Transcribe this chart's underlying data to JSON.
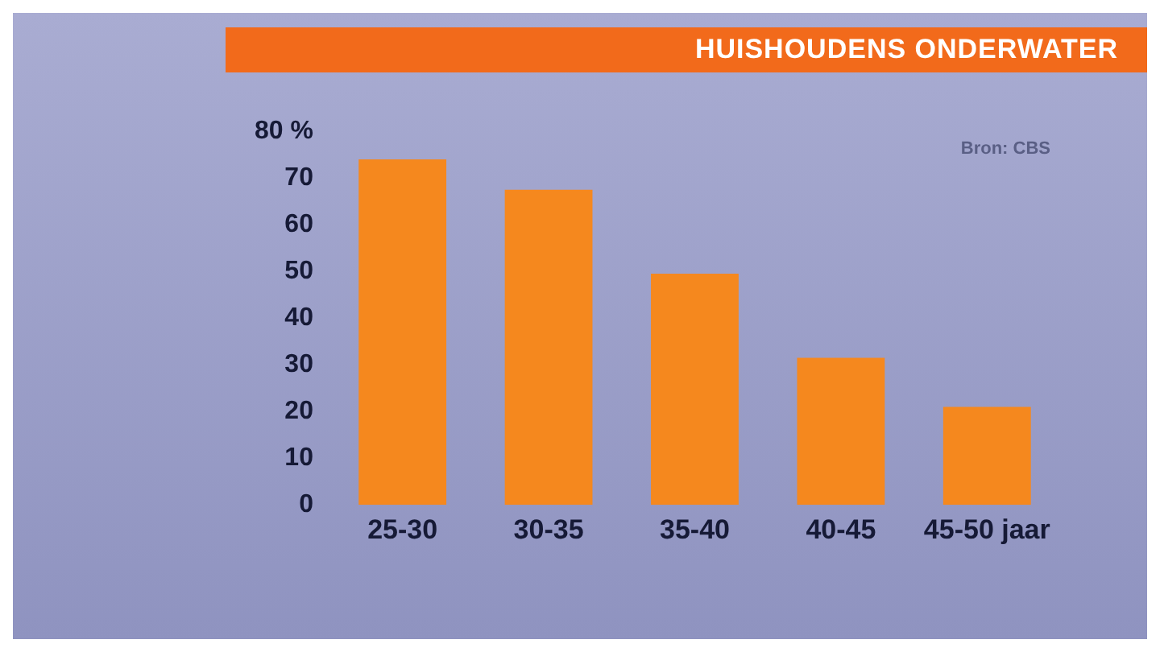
{
  "chart_data": {
    "type": "bar",
    "title": "HUISHOUDENS ONDERWATER",
    "categories": [
      "25-30",
      "30-35",
      "35-40",
      "40-45",
      "45-50 jaar"
    ],
    "values": [
      74,
      67.5,
      49.5,
      31.5,
      21
    ],
    "color": "#f5881e",
    "ylim": [
      0,
      80
    ],
    "yticks": [
      0,
      10,
      20,
      30,
      40,
      50,
      60,
      70,
      {
        "value": 80,
        "label": "80 %"
      }
    ],
    "grid": false,
    "legend": false,
    "annotations": [
      "Bron: CBS"
    ]
  }
}
